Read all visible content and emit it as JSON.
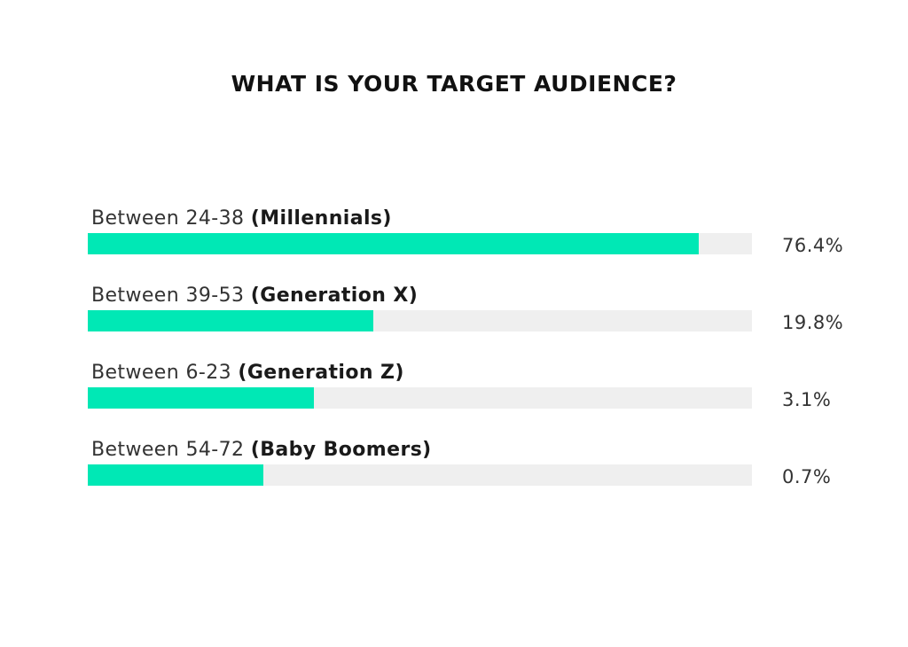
{
  "page": {
    "title": "WHAT IS YOUR TARGET AUDIENCE?"
  },
  "colors": {
    "bar_fill": "#00E8B5",
    "bar_track": "#EFEFEF",
    "text": "#333333",
    "title": "#111111"
  },
  "chart_data": {
    "type": "bar",
    "orientation": "horizontal",
    "title": "WHAT IS YOUR TARGET AUDIENCE?",
    "categories": [
      "Between 24-38 (Millennials)",
      "Between 39-53 (Generation X)",
      "Between 6-23 (Generation Z)",
      "Between 54-72 (Baby Boomers)"
    ],
    "rows": [
      {
        "range": "Between 24-38",
        "group": "(Millennials)",
        "value": 76.4,
        "value_label": "76.4%",
        "bar_fill_fraction": 0.92
      },
      {
        "range": "Between 39-53",
        "group": "(Generation X)",
        "value": 19.8,
        "value_label": "19.8%",
        "bar_fill_fraction": 0.43
      },
      {
        "range": "Between 6-23",
        "group": "(Generation Z)",
        "value": 3.1,
        "value_label": "3.1%",
        "bar_fill_fraction": 0.34
      },
      {
        "range": "Between 54-72",
        "group": "(Baby Boomers)",
        "value": 0.7,
        "value_label": "0.7%",
        "bar_fill_fraction": 0.265
      }
    ],
    "grid": false,
    "legend": "none"
  }
}
